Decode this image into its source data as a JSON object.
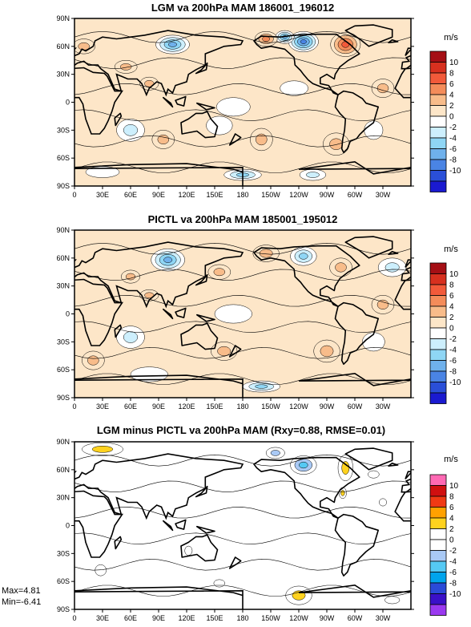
{
  "chart_data": [
    {
      "type": "heatmap",
      "title": "LGM va 200hPa MAM 186001_196012",
      "units": "m/s",
      "x_ticks": [
        "0",
        "30E",
        "60E",
        "90E",
        "120E",
        "150E",
        "180",
        "150W",
        "120W",
        "90W",
        "60W",
        "30W"
      ],
      "y_ticks": [
        "90N",
        "60N",
        "30N",
        "0",
        "30S",
        "60S",
        "90S"
      ],
      "colorbar_levels": [
        "10",
        "8",
        "6",
        "4",
        "2",
        "0",
        "-2",
        "-4",
        "-6",
        "-8",
        "-10"
      ],
      "colorbar_colors": [
        "#a50f15",
        "#d7301f",
        "#f25a3a",
        "#f48c5a",
        "#f8bc8a",
        "#fde6c8",
        "#ffffff",
        "#cdeffd",
        "#8fd6f5",
        "#6fb1ec",
        "#4a84e4",
        "#2a4fd8",
        "#1a1ad0"
      ],
      "features": [
        {
          "lon": 105,
          "lat": 62,
          "value": -8,
          "rx": 18,
          "ry": 10
        },
        {
          "lon": 245,
          "lat": 65,
          "value": -10,
          "rx": 16,
          "ry": 11
        },
        {
          "lon": 225,
          "lat": 70,
          "value": -8,
          "rx": 10,
          "ry": 7
        },
        {
          "lon": 205,
          "lat": 68,
          "value": 6,
          "rx": 12,
          "ry": 8
        },
        {
          "lon": 290,
          "lat": 62,
          "value": 8,
          "rx": 16,
          "ry": 13
        },
        {
          "lon": 55,
          "lat": 38,
          "value": 4,
          "rx": 12,
          "ry": 7
        },
        {
          "lon": 80,
          "lat": 20,
          "value": 4,
          "rx": 10,
          "ry": 7
        },
        {
          "lon": 10,
          "lat": 60,
          "value": 4,
          "rx": 12,
          "ry": 8
        },
        {
          "lon": 330,
          "lat": 15,
          "value": 4,
          "rx": 12,
          "ry": 10
        },
        {
          "lon": 170,
          "lat": -5,
          "value": -2,
          "rx": 18,
          "ry": 10
        },
        {
          "lon": 235,
          "lat": 15,
          "value": -2,
          "rx": 15,
          "ry": 8
        },
        {
          "lon": 60,
          "lat": -30,
          "value": -4,
          "rx": 15,
          "ry": 12
        },
        {
          "lon": 95,
          "lat": -40,
          "value": 4,
          "rx": 12,
          "ry": 10
        },
        {
          "lon": 155,
          "lat": -25,
          "value": -2,
          "rx": 14,
          "ry": 10
        },
        {
          "lon": 200,
          "lat": -40,
          "value": 4,
          "rx": 12,
          "ry": 12
        },
        {
          "lon": 280,
          "lat": -45,
          "value": 4,
          "rx": 14,
          "ry": 12
        },
        {
          "lon": 320,
          "lat": -30,
          "value": -2,
          "rx": 10,
          "ry": 10
        },
        {
          "lon": 180,
          "lat": -78,
          "value": -6,
          "rx": 20,
          "ry": 6
        },
        {
          "lon": 30,
          "lat": -75,
          "value": -2,
          "rx": 18,
          "ry": 6
        },
        {
          "lon": 255,
          "lat": -78,
          "value": -4,
          "rx": 14,
          "ry": 6
        }
      ]
    },
    {
      "type": "heatmap",
      "title": "PICTL va 200hPa MAM 185001_195012",
      "units": "m/s",
      "x_ticks": [
        "0",
        "30E",
        "60E",
        "90E",
        "120E",
        "150E",
        "180",
        "150W",
        "120W",
        "90W",
        "60W",
        "30W"
      ],
      "y_ticks": [
        "90N",
        "60N",
        "30N",
        "0",
        "30S",
        "60S",
        "90S"
      ],
      "colorbar_levels": [
        "10",
        "8",
        "6",
        "4",
        "2",
        "0",
        "-2",
        "-4",
        "-6",
        "-8",
        "-10"
      ],
      "colorbar_colors": [
        "#a50f15",
        "#d7301f",
        "#f25a3a",
        "#f48c5a",
        "#f8bc8a",
        "#fde6c8",
        "#ffffff",
        "#cdeffd",
        "#8fd6f5",
        "#6fb1ec",
        "#4a84e4",
        "#2a4fd8",
        "#1a1ad0"
      ],
      "features": [
        {
          "lon": 100,
          "lat": 58,
          "value": -8,
          "rx": 18,
          "ry": 12
        },
        {
          "lon": 155,
          "lat": 45,
          "value": 4,
          "rx": 12,
          "ry": 8
        },
        {
          "lon": 205,
          "lat": 65,
          "value": 4,
          "rx": 14,
          "ry": 9
        },
        {
          "lon": 245,
          "lat": 62,
          "value": -6,
          "rx": 14,
          "ry": 10
        },
        {
          "lon": 285,
          "lat": 50,
          "value": 4,
          "rx": 12,
          "ry": 10
        },
        {
          "lon": 340,
          "lat": 50,
          "value": -4,
          "rx": 15,
          "ry": 10
        },
        {
          "lon": 60,
          "lat": 40,
          "value": 4,
          "rx": 10,
          "ry": 7
        },
        {
          "lon": 80,
          "lat": 20,
          "value": 4,
          "rx": 10,
          "ry": 6
        },
        {
          "lon": 330,
          "lat": 10,
          "value": 4,
          "rx": 12,
          "ry": 10
        },
        {
          "lon": 170,
          "lat": 0,
          "value": -2,
          "rx": 20,
          "ry": 10
        },
        {
          "lon": 60,
          "lat": -25,
          "value": -4,
          "rx": 15,
          "ry": 12
        },
        {
          "lon": 20,
          "lat": -50,
          "value": 4,
          "rx": 12,
          "ry": 10
        },
        {
          "lon": 160,
          "lat": -40,
          "value": 4,
          "rx": 14,
          "ry": 10
        },
        {
          "lon": 270,
          "lat": -40,
          "value": 4,
          "rx": 14,
          "ry": 12
        },
        {
          "lon": 320,
          "lat": -30,
          "value": -2,
          "rx": 12,
          "ry": 10
        },
        {
          "lon": 200,
          "lat": -78,
          "value": -6,
          "rx": 20,
          "ry": 6
        },
        {
          "lon": 80,
          "lat": -65,
          "value": -2,
          "rx": 20,
          "ry": 8
        }
      ]
    },
    {
      "type": "heatmap",
      "title": "LGM minus PICTL va 200hPa MAM (Rxy=0.88, RMSE=0.01)",
      "units": "m/s",
      "x_ticks": [
        "0",
        "30E",
        "60E",
        "90E",
        "120E",
        "150E",
        "180",
        "150W",
        "120W",
        "90W",
        "60W",
        "30W"
      ],
      "y_ticks": [
        "90N",
        "60N",
        "30N",
        "0",
        "30S",
        "60S",
        "90S"
      ],
      "colorbar_levels": [
        "10",
        "8",
        "6",
        "4",
        "2",
        "0",
        "-2",
        "-4",
        "-6",
        "-8",
        "-10"
      ],
      "colorbar_colors": [
        "#ff69b4",
        "#d01010",
        "#f03a14",
        "#ffa100",
        "#ffd21f",
        "#ffffff",
        "#ffffff",
        "#a9c9f5",
        "#55c9f4",
        "#00a4ec",
        "#2a4bd8",
        "#3a10c8",
        "#9a39f0"
      ],
      "stats": {
        "max": "Max=4.81",
        "min": "Min=-6.41"
      },
      "features": [
        {
          "lon": 30,
          "lat": 82,
          "value": 4,
          "rx": 22,
          "ry": 7
        },
        {
          "lon": 215,
          "lat": 78,
          "value": -4,
          "rx": 10,
          "ry": 6
        },
        {
          "lon": 245,
          "lat": 65,
          "value": -6,
          "rx": 14,
          "ry": 10
        },
        {
          "lon": 290,
          "lat": 62,
          "value": 4,
          "rx": 8,
          "ry": 14
        },
        {
          "lon": 287,
          "lat": 35,
          "value": 4,
          "rx": 4,
          "ry": 6
        },
        {
          "lon": 330,
          "lat": 25,
          "value": -2,
          "rx": 4,
          "ry": 4
        },
        {
          "lon": 320,
          "lat": 55,
          "value": -2,
          "rx": 6,
          "ry": 4
        },
        {
          "lon": 122,
          "lat": -27,
          "value": -2,
          "rx": 4,
          "ry": 5
        },
        {
          "lon": 28,
          "lat": -48,
          "value": -2,
          "rx": 6,
          "ry": 6
        },
        {
          "lon": 155,
          "lat": -62,
          "value": -2,
          "rx": 6,
          "ry": 4
        },
        {
          "lon": 240,
          "lat": -75,
          "value": 4,
          "rx": 14,
          "ry": 10
        },
        {
          "lon": 340,
          "lat": -80,
          "value": -2,
          "rx": 8,
          "ry": 4
        }
      ]
    }
  ]
}
